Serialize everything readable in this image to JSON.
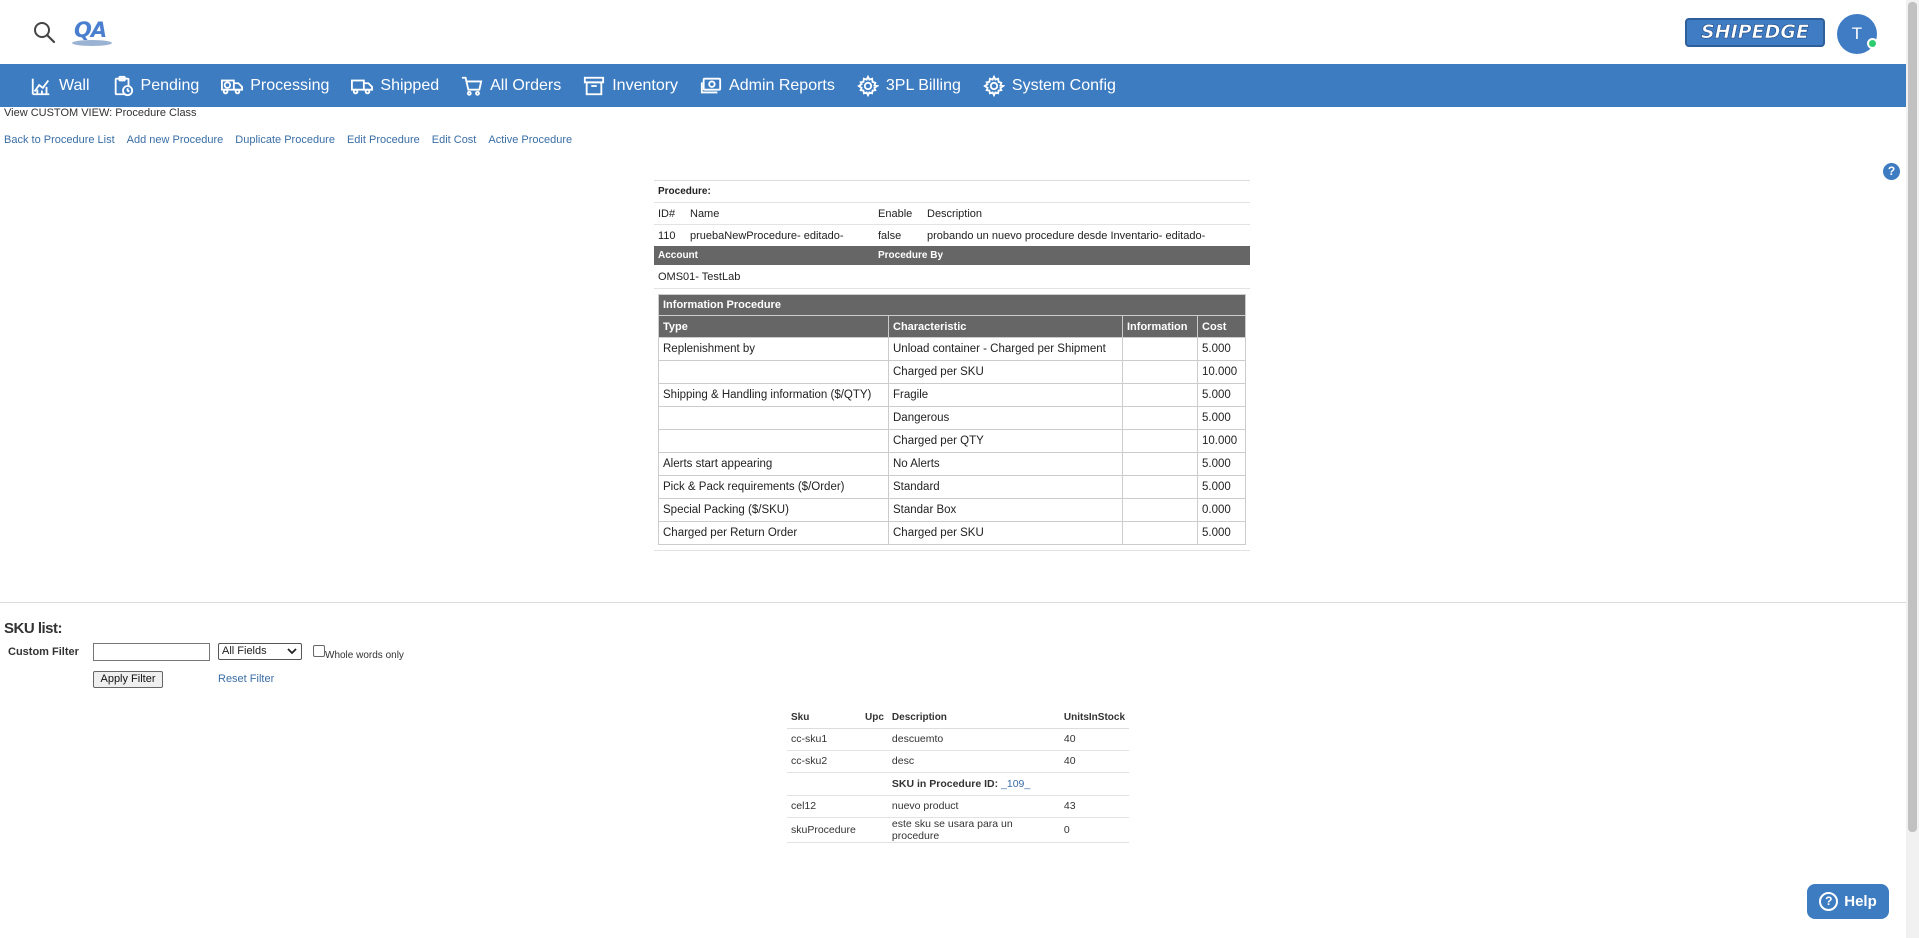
{
  "header": {
    "logo_text": "QA",
    "brand": "SHIPEDGE",
    "user_initial": "T"
  },
  "nav": [
    {
      "label": "Wall",
      "icon": "chart-icon"
    },
    {
      "label": "Pending",
      "icon": "clipboard-clock-icon"
    },
    {
      "label": "Processing",
      "icon": "truck-clock-icon"
    },
    {
      "label": "Shipped",
      "icon": "truck-icon"
    },
    {
      "label": "All Orders",
      "icon": "cart-icon"
    },
    {
      "label": "Inventory",
      "icon": "archive-icon"
    },
    {
      "label": "Admin Reports",
      "icon": "money-icon"
    },
    {
      "label": "3PL Billing",
      "icon": "gear-icon"
    },
    {
      "label": "System Config",
      "icon": "gear-icon"
    }
  ],
  "view_title": "View CUSTOM VIEW: Procedure Class",
  "actions": [
    "Back to Procedure List",
    "Add new Procedure",
    "Duplicate Procedure",
    "Edit Procedure",
    "Edit Cost",
    "Active Procedure"
  ],
  "procedure": {
    "label": "Procedure:",
    "headers": {
      "id": "ID#",
      "name": "Name",
      "enable": "Enable",
      "description": "Description"
    },
    "id": "110",
    "name": "pruebaNewProcedure- editado-",
    "enable": "false",
    "description": "probando un nuevo procedure desde Inventario- editado-",
    "account_header": "Account",
    "procedure_by_header": "Procedure By",
    "account": "OMS01- TestLab"
  },
  "info": {
    "caption": "Information Procedure",
    "headers": [
      "Type",
      "Characteristic",
      "Information",
      "Cost"
    ],
    "rows": [
      [
        "Replenishment by",
        "Unload container - Charged per Shipment",
        "",
        "5.000"
      ],
      [
        "",
        "Charged per SKU",
        "",
        "10.000"
      ],
      [
        "Shipping & Handling information ($/QTY)",
        "Fragile",
        "",
        "5.000"
      ],
      [
        "",
        "Dangerous",
        "",
        "5.000"
      ],
      [
        "",
        "Charged per QTY",
        "",
        "10.000"
      ],
      [
        "Alerts start appearing",
        "No Alerts",
        "",
        "5.000"
      ],
      [
        "Pick & Pack requirements ($/Order)",
        "Standard",
        "",
        "5.000"
      ],
      [
        "Special Packing ($/SKU)",
        "Standar Box",
        "",
        "0.000"
      ],
      [
        "Charged per Return Order",
        "Charged per SKU",
        "",
        "5.000"
      ]
    ]
  },
  "sku": {
    "title": "SKU list:",
    "filter_label": "Custom Filter",
    "filter_value": "",
    "field_select": "All Fields",
    "whole_words": "Whole words only",
    "apply": "Apply Filter",
    "reset": "Reset Filter",
    "headers": [
      "Sku",
      "Upc",
      "Description",
      "UnitsInStock"
    ],
    "rows": [
      [
        "cc-sku1",
        "",
        "descuemto",
        "40"
      ],
      [
        "cc-sku2",
        "",
        "desc",
        "40"
      ]
    ],
    "sub_label": "SKU in Procedure ID:",
    "sub_link": "_109_",
    "rows2": [
      [
        "cel12",
        "",
        "nuevo product",
        "43"
      ],
      [
        "skuProcedure",
        "",
        "este sku se usara para un procedure",
        "0"
      ]
    ]
  },
  "help_label": "Help",
  "colors": {
    "nav": "#3d7cc1",
    "table_header": "#666666",
    "link": "#3a6ea5"
  }
}
